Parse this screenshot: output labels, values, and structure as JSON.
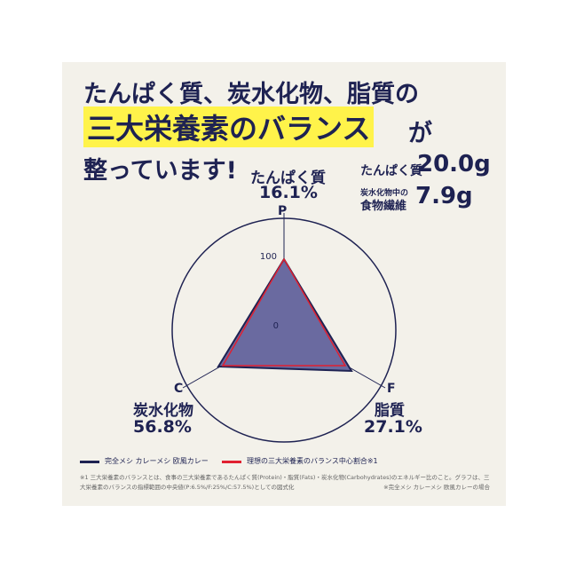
{
  "header": {
    "line1": "たんぱく質、炭水化物、脂質の",
    "highlight": "三大栄養素のバランス",
    "particle": "が",
    "line3": "整っています!"
  },
  "nutrition": {
    "protein_label": "たんぱく質",
    "protein_value": "20.0g",
    "fiber_label_small": "炭水化物中の",
    "fiber_label": "食物繊維",
    "fiber_value": "7.9g"
  },
  "radar": {
    "p": {
      "axis": "P",
      "name": "たんぱく質",
      "ratio": "16.1%"
    },
    "c": {
      "axis": "C",
      "name": "炭水化物",
      "ratio": "56.8%"
    },
    "f": {
      "axis": "F",
      "name": "脂質",
      "ratio": "27.1%"
    },
    "tick_max": "100",
    "tick_min": "0"
  },
  "legend": {
    "product": "完全メシ カレーメシ 欧風カレー",
    "ideal": "理想の三大栄養素のバランス中心割合※1"
  },
  "footnote": {
    "line1": "※1 三大栄養素のバランスとは、食事の三大栄養素であるたんぱく質(Protein)・脂質(Fats)・炭水化物(Carbohydrates)のエネルギー比のこと。グラフは、三",
    "line2": "大栄養素のバランスの指標範囲の中央値(P:6.5%/F:25%/C:57.5%)としての図式化",
    "line3": "※完全メシ カレーメシ 欧風カレーの場合"
  }
}
